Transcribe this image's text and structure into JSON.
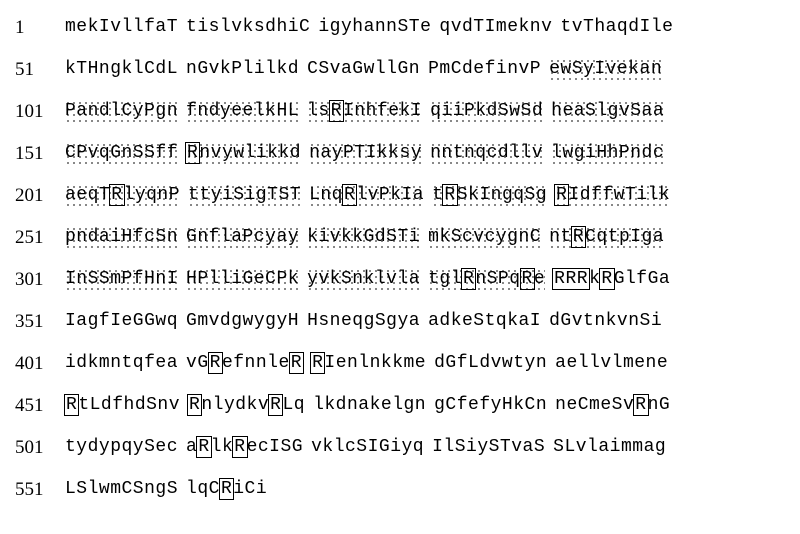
{
  "rows": [
    {
      "n": "1",
      "b": [
        {
          "t": "mekIvllfaT",
          "d": false,
          "bx": []
        },
        {
          "t": "tislvksdhiC",
          "d": false,
          "bx": []
        },
        {
          "t": "igyhannSTe",
          "d": false,
          "bx": []
        },
        {
          "t": "qvdTImeknv",
          "d": false,
          "bx": []
        },
        {
          "t": "tvThaqdIle",
          "d": false,
          "bx": []
        }
      ]
    },
    {
      "n": "51",
      "b": [
        {
          "t": "kTHngklCdL",
          "d": false,
          "bx": []
        },
        {
          "t": "nGvkPlilkd",
          "d": false,
          "bx": []
        },
        {
          "t": "CSvaGwllGn",
          "d": false,
          "bx": []
        },
        {
          "t": "PmCdefinvP",
          "d": false,
          "bx": []
        },
        {
          "t": "ewSyIvekan",
          "d": true,
          "bx": []
        }
      ]
    },
    {
      "n": "101",
      "b": [
        {
          "t": "PandlCyPgn",
          "d": true,
          "bx": []
        },
        {
          "t": "fndyeelkHL",
          "d": true,
          "bx": []
        },
        {
          "t": "lsRInhfekI",
          "d": true,
          "bx": [
            [
              2,
              3
            ]
          ]
        },
        {
          "t": "qiiPkdSwSd",
          "d": true,
          "bx": []
        },
        {
          "t": "heaSlgvSaa",
          "d": true,
          "bx": []
        }
      ]
    },
    {
      "n": "151",
      "b": [
        {
          "t": "CPvqGnSSff",
          "d": true,
          "bx": []
        },
        {
          "t": "Rnvywlikkd",
          "d": true,
          "bx": [
            [
              0,
              1
            ]
          ]
        },
        {
          "t": "nayPTIkksy",
          "d": true,
          "bx": []
        },
        {
          "t": "nntnqcdllv",
          "d": true,
          "bx": []
        },
        {
          "t": "lwgiHhPndc",
          "d": true,
          "bx": []
        }
      ]
    },
    {
      "n": "201",
      "b": [
        {
          "t": "aeqTRlyqnP",
          "d": true,
          "bx": [
            [
              4,
              5
            ]
          ]
        },
        {
          "t": "ttyiSigTST",
          "d": true,
          "bx": []
        },
        {
          "t": "LnqRlvPkIa",
          "d": true,
          "bx": [
            [
              3,
              4
            ]
          ]
        },
        {
          "t": "tRSkIngqSg",
          "d": true,
          "bx": [
            [
              1,
              2
            ]
          ]
        },
        {
          "t": "RIdffwTilk",
          "d": true,
          "bx": [
            [
              0,
              1
            ]
          ]
        }
      ]
    },
    {
      "n": "251",
      "b": [
        {
          "t": "pndaiHfcSn",
          "d": true,
          "bx": []
        },
        {
          "t": "GnflaPcyay",
          "d": true,
          "bx": []
        },
        {
          "t": "kivkkGdSTi",
          "d": true,
          "bx": []
        },
        {
          "t": "mkScvcygnC",
          "d": true,
          "bx": []
        },
        {
          "t": "ntRCqtpIga",
          "d": true,
          "bx": [
            [
              2,
              3
            ]
          ]
        }
      ]
    },
    {
      "n": "301",
      "b": [
        {
          "t": "InSSmPfHnI",
          "d": true,
          "bx": []
        },
        {
          "t": "HPlliGeCPk",
          "d": true,
          "bx": []
        },
        {
          "t": "yvkSnklvla",
          "d": true,
          "bx": []
        },
        {
          "t": "tglRnSPqRe",
          "d": true,
          "bx": [
            [
              3,
              4
            ],
            [
              8,
              9
            ]
          ]
        },
        {
          "t": "RRRkRGlfGa",
          "d": false,
          "bx": [
            [
              0,
              3
            ],
            [
              4,
              5
            ]
          ]
        }
      ]
    },
    {
      "n": "351",
      "b": [
        {
          "t": "IagfIeGGwq",
          "d": false,
          "bx": []
        },
        {
          "t": "GmvdgwygyH",
          "d": false,
          "bx": []
        },
        {
          "t": "HsneqgSgya",
          "d": false,
          "bx": []
        },
        {
          "t": "adkeStqkaI",
          "d": false,
          "bx": []
        },
        {
          "t": "dGvtnkvnSi",
          "d": false,
          "bx": []
        }
      ]
    },
    {
      "n": "401",
      "b": [
        {
          "t": "idkmntqfea",
          "d": false,
          "bx": []
        },
        {
          "t": "vGRefnnleR",
          "d": false,
          "bx": [
            [
              2,
              3
            ],
            [
              9,
              10
            ]
          ]
        },
        {
          "t": "RIenlnkkme",
          "d": false,
          "bx": [
            [
              0,
              1
            ]
          ]
        },
        {
          "t": "dGfLdvwtyn",
          "d": false,
          "bx": []
        },
        {
          "t": "aellvlmene",
          "d": false,
          "bx": []
        }
      ]
    },
    {
      "n": "451",
      "b": [
        {
          "t": "RtLdfhdSnv",
          "d": false,
          "bx": [
            [
              0,
              1
            ]
          ]
        },
        {
          "t": "RnlydkvRLq",
          "d": false,
          "bx": [
            [
              0,
              1
            ],
            [
              7,
              8
            ]
          ]
        },
        {
          "t": "lkdnakelgn",
          "d": false,
          "bx": []
        },
        {
          "t": "gCfefyHkCn",
          "d": false,
          "bx": []
        },
        {
          "t": "neCmeSvRnG",
          "d": false,
          "bx": [
            [
              7,
              8
            ]
          ]
        }
      ]
    },
    {
      "n": "501",
      "b": [
        {
          "t": "tydypqySec",
          "d": false,
          "bx": []
        },
        {
          "t": "aRlkRecISG",
          "d": false,
          "bx": [
            [
              1,
              2
            ],
            [
              4,
              5
            ]
          ]
        },
        {
          "t": "vklcSIGiyq",
          "d": false,
          "bx": []
        },
        {
          "t": "IlSiySTvaS",
          "d": false,
          "bx": []
        },
        {
          "t": "SLvlaimmag",
          "d": false,
          "bx": []
        }
      ]
    },
    {
      "n": "551",
      "b": [
        {
          "t": "LSlwmCSngS",
          "d": false,
          "bx": []
        },
        {
          "t": "lqCRiCi",
          "d": false,
          "bx": [
            [
              3,
              4
            ]
          ]
        }
      ]
    }
  ]
}
